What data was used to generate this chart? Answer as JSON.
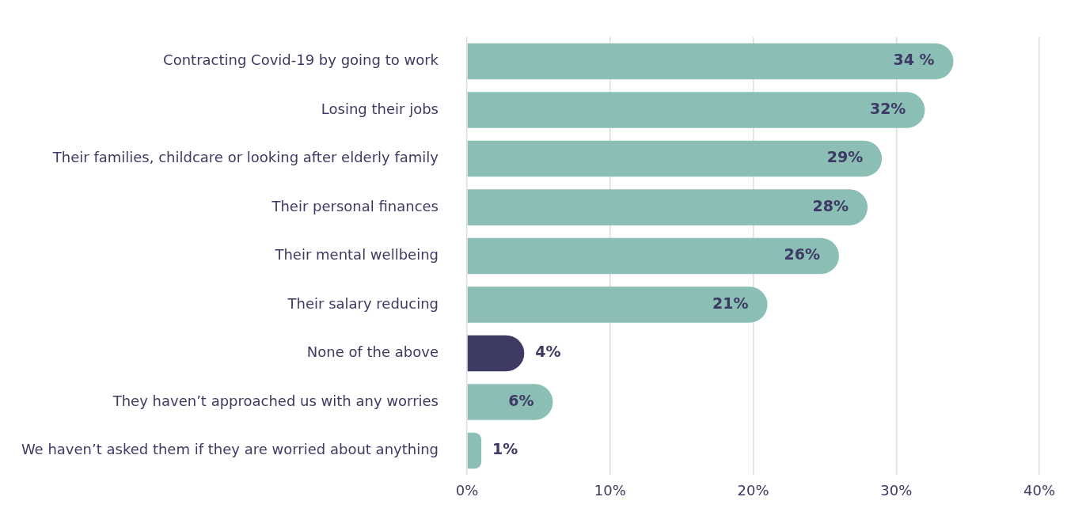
{
  "chart_data": {
    "type": "bar",
    "orientation": "horizontal",
    "categories": [
      "Contracting Covid-19 by going to work",
      "Losing their jobs",
      "Their families, childcare or looking after elderly family",
      "Their personal finances",
      "Their mental wellbeing",
      "Their salary reducing",
      "None of the above",
      "They haven’t approached us with any worries",
      "We haven’t asked them if they are worried about anything"
    ],
    "values": [
      34,
      32,
      29,
      28,
      26,
      21,
      4,
      6,
      1
    ],
    "colors": [
      "#8bbfb5",
      "#8bbfb5",
      "#8bbfb5",
      "#8bbfb5",
      "#8bbfb5",
      "#8bbfb5",
      "#3d3a63",
      "#8bbfb5",
      "#8bbfb5"
    ],
    "value_labels": [
      "34 %",
      "32%",
      "29%",
      "28%",
      "26%",
      "21%",
      "4%",
      "6%",
      "1%"
    ],
    "xlim": [
      0,
      40
    ],
    "xticks": [
      {
        "value": 0,
        "label": "0%"
      },
      {
        "value": 10,
        "label": "10%"
      },
      {
        "value": 20,
        "label": "20%"
      },
      {
        "value": 30,
        "label": "30%"
      },
      {
        "value": 40,
        "label": "40%"
      }
    ],
    "grid": "x",
    "legend": false
  }
}
